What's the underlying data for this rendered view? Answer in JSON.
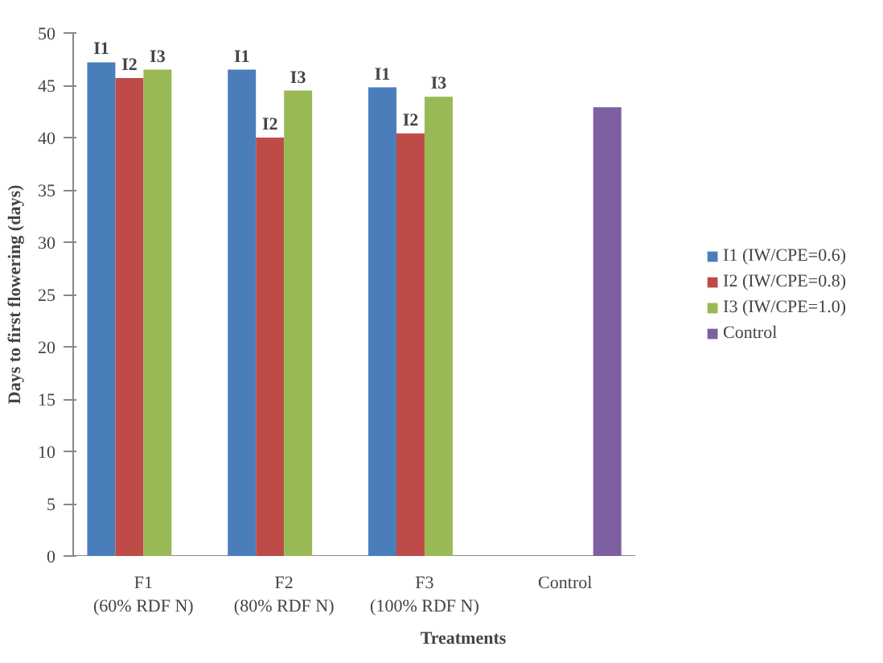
{
  "chart_data": {
    "type": "bar",
    "xlabel": "Treatments",
    "ylabel": "Days to first flowering (days)",
    "categories": [
      "F1\n(60% RDF N)",
      "F2\n(80% RDF N)",
      "F3\n(100% RDF N)",
      "Control"
    ],
    "series": [
      {
        "name": "I1 (IW/CPE=0.6)",
        "color": "#4a7ebb",
        "values": [
          47.2,
          46.5,
          44.8,
          null
        ]
      },
      {
        "name": "I2 (IW/CPE=0.8)",
        "color": "#be4b48",
        "values": [
          45.7,
          40.0,
          40.4,
          null
        ]
      },
      {
        "name": "I3 (IW/CPE=1.0)",
        "color": "#98b954",
        "values": [
          46.5,
          44.5,
          43.9,
          null
        ]
      },
      {
        "name": "Control",
        "color": "#7d60a0",
        "values": [
          null,
          null,
          null,
          42.9
        ]
      }
    ],
    "annotations": [
      "I1",
      "I2",
      "I3",
      "I1",
      "I2",
      "I3",
      "I1",
      "I2",
      "I3"
    ],
    "ylim": [
      0,
      50
    ],
    "yticks": [
      0,
      5,
      10,
      15,
      20,
      25,
      30,
      35,
      40,
      45,
      50
    ],
    "grid": false,
    "legend": "right"
  }
}
